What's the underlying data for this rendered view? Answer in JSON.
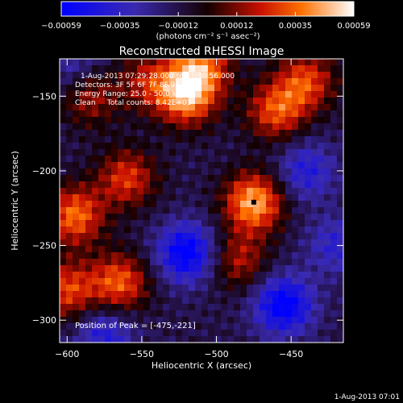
{
  "chart_data": {
    "type": "heatmap",
    "title": "Reconstructed RHESSI Image",
    "xlabel": "Heliocentric X (arcsec)",
    "ylabel": "Heliocentric Y (arcsec)",
    "xlim": [
      -605,
      -415
    ],
    "ylim": [
      -315,
      -125
    ],
    "xticks": [
      -600,
      -550,
      -500,
      -450
    ],
    "yticks": [
      -300,
      -250,
      -200,
      -150
    ],
    "colorbar": {
      "ticks": [
        "-0.00059",
        "-0.00035",
        "-0.00012",
        "0.00012",
        "0.00035",
        "0.00059"
      ],
      "range": [
        -0.00059,
        0.00059
      ],
      "unit_label": "(photons cm⁻² s⁻¹ asec⁻²)"
    },
    "annotations": [
      "1-Aug-2013 07:29:28.000 to 07:30:56.000",
      "Detectors: 3F 5F 6F 7F 8F 9F, All 0",
      "Energy Range: 25.0 - 50.0 keV",
      "Clean     Total counts: 8.42E+03"
    ],
    "peak_label": "Position of Peak = [-475,-221]",
    "peak_position": [
      -475,
      -221
    ],
    "brightness_blobs": [
      {
        "x": -520,
        "y": -150,
        "v": 0.00055
      },
      {
        "x": -510,
        "y": -130,
        "v": 0.00045
      },
      {
        "x": -475,
        "y": -221,
        "v": 0.00059
      },
      {
        "x": -460,
        "y": -160,
        "v": 0.00042
      },
      {
        "x": -440,
        "y": -140,
        "v": 0.0004
      },
      {
        "x": -560,
        "y": -205,
        "v": 0.00038
      },
      {
        "x": -595,
        "y": -230,
        "v": 0.00048
      },
      {
        "x": -585,
        "y": -150,
        "v": 0.0003
      },
      {
        "x": -565,
        "y": -275,
        "v": 0.00045
      },
      {
        "x": -545,
        "y": -140,
        "v": 0.0003
      },
      {
        "x": -485,
        "y": -260,
        "v": 0.0003
      },
      {
        "x": -600,
        "y": -280,
        "v": 0.0004
      },
      {
        "x": -520,
        "y": -255,
        "v": -0.0005
      },
      {
        "x": -455,
        "y": -290,
        "v": -0.0005
      },
      {
        "x": -420,
        "y": -250,
        "v": -0.00025
      },
      {
        "x": -440,
        "y": -200,
        "v": -0.0003
      },
      {
        "x": -575,
        "y": -310,
        "v": -0.0003
      },
      {
        "x": -595,
        "y": -130,
        "v": -0.0002
      }
    ]
  },
  "footer_timestamp": "1-Aug-2013 07:01"
}
